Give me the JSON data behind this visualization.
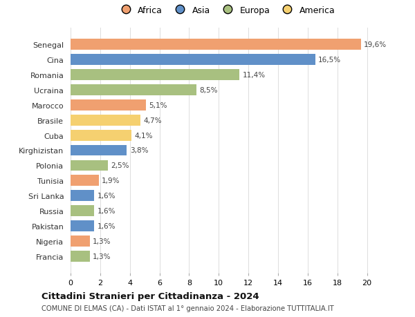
{
  "categories": [
    "Francia",
    "Nigeria",
    "Pakistan",
    "Russia",
    "Sri Lanka",
    "Tunisia",
    "Polonia",
    "Kirghizistan",
    "Cuba",
    "Brasile",
    "Marocco",
    "Ucraina",
    "Romania",
    "Cina",
    "Senegal"
  ],
  "values": [
    1.3,
    1.3,
    1.6,
    1.6,
    1.6,
    1.9,
    2.5,
    3.8,
    4.1,
    4.7,
    5.1,
    8.5,
    11.4,
    16.5,
    19.6
  ],
  "labels": [
    "1,3%",
    "1,3%",
    "1,6%",
    "1,6%",
    "1,6%",
    "1,9%",
    "2,5%",
    "3,8%",
    "4,1%",
    "4,7%",
    "5,1%",
    "8,5%",
    "11,4%",
    "16,5%",
    "19,6%"
  ],
  "colors": [
    "#a8c080",
    "#f0a070",
    "#6090c8",
    "#a8c080",
    "#6090c8",
    "#f0a070",
    "#a8c080",
    "#6090c8",
    "#f5d070",
    "#f5d070",
    "#f0a070",
    "#a8c080",
    "#a8c080",
    "#6090c8",
    "#f0a070"
  ],
  "continent_colors": {
    "Africa": "#f0a070",
    "Asia": "#6090c8",
    "Europa": "#a8c080",
    "America": "#f5d070"
  },
  "title": "Cittadini Stranieri per Cittadinanza - 2024",
  "subtitle": "COMUNE DI ELMAS (CA) - Dati ISTAT al 1° gennaio 2024 - Elaborazione TUTTITALIA.IT",
  "xlim": [
    0,
    21
  ],
  "xticks": [
    0,
    2,
    4,
    6,
    8,
    10,
    12,
    14,
    16,
    18,
    20
  ],
  "background_color": "#ffffff",
  "grid_color": "#dddddd"
}
